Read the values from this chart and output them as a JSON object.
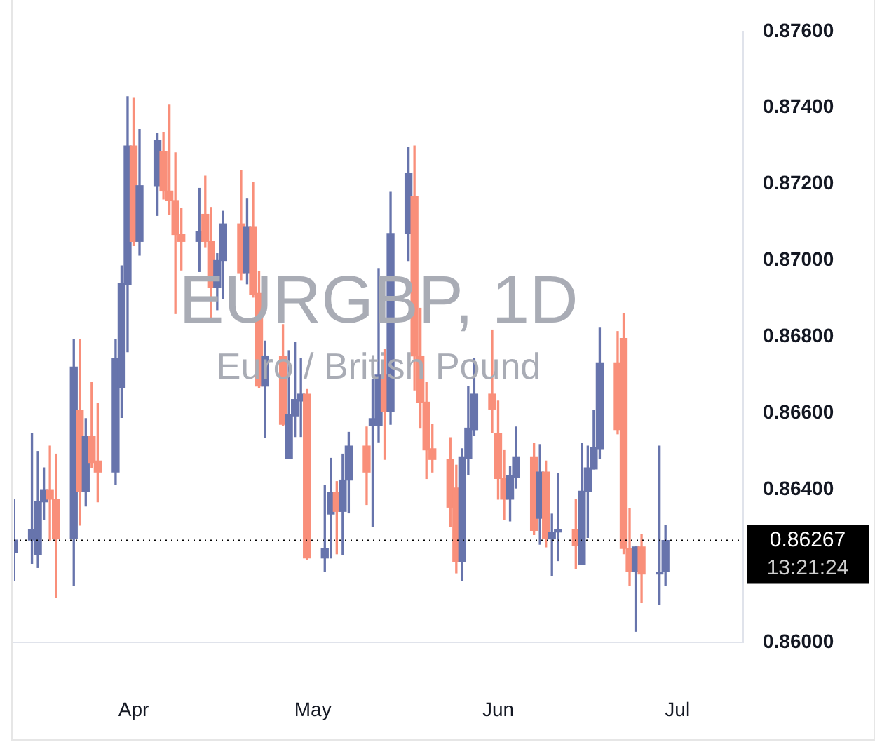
{
  "chart_data": {
    "type": "candlestick",
    "title": "EURGBP, 1D",
    "subtitle": "Euro / British Pound",
    "x": [
      "--03-12",
      "--03-15",
      "--03-16",
      "--03-17",
      "--03-18",
      "--03-19",
      "--03-22",
      "--03-23",
      "--03-24",
      "--03-25",
      "--03-26",
      "--03-29",
      "--03-30",
      "--03-31",
      "--04-01",
      "--04-02",
      "--04-05",
      "--04-06",
      "--04-07",
      "--04-08",
      "--04-09",
      "--04-12",
      "--04-13",
      "--04-14",
      "--04-15",
      "--04-16",
      "--04-19",
      "--04-20",
      "--04-21",
      "--04-22",
      "--04-23",
      "--04-26",
      "--04-27",
      "--04-28",
      "--04-29",
      "--04-30",
      "--05-03",
      "--05-04",
      "--05-05",
      "--05-06",
      "--05-07",
      "--05-10",
      "--05-11",
      "--05-12",
      "--05-13",
      "--05-14",
      "--05-17",
      "--05-18",
      "--05-19",
      "--05-20",
      "--05-21",
      "--05-24",
      "--05-25",
      "--05-26",
      "--05-27",
      "--05-28",
      "--05-31",
      "--06-01",
      "--06-02",
      "--06-03",
      "--06-04",
      "--06-07",
      "--06-08",
      "--06-09",
      "--06-10",
      "--06-11",
      "--06-14",
      "--06-15",
      "--06-16",
      "--06-17",
      "--06-18",
      "--06-21",
      "--06-22",
      "--06-23",
      "--06-24",
      "--06-25",
      "--06-28",
      "--06-29"
    ],
    "ohlc": [
      [
        0.86236,
        0.86375,
        0.86161,
        0.86268
      ],
      [
        0.86268,
        0.86546,
        0.86207,
        0.86296
      ],
      [
        0.86229,
        0.865,
        0.86196,
        0.86368
      ],
      [
        0.86368,
        0.86457,
        0.86321,
        0.864
      ],
      [
        0.864,
        0.86514,
        0.86268,
        0.86375
      ],
      [
        0.86375,
        0.86493,
        0.86118,
        0.86271
      ],
      [
        0.86271,
        0.86793,
        0.8615,
        0.86721
      ],
      [
        0.86607,
        0.86793,
        0.86307,
        0.86396
      ],
      [
        0.86396,
        0.86586,
        0.86357,
        0.86539
      ],
      [
        0.86539,
        0.86682,
        0.86457,
        0.86471
      ],
      [
        0.86475,
        0.86625,
        0.86368,
        0.86446
      ],
      [
        0.86446,
        0.86793,
        0.86414,
        0.86743
      ],
      [
        0.86668,
        0.86986,
        0.86589,
        0.86939
      ],
      [
        0.86936,
        0.87429,
        0.86761,
        0.873
      ],
      [
        0.873,
        0.87425,
        0.87039,
        0.8705
      ],
      [
        0.8705,
        0.87343,
        0.87014,
        0.87196
      ],
      [
        0.87196,
        0.87332,
        0.87118,
        0.87314
      ],
      [
        0.87286,
        0.87336,
        0.87161,
        0.87182
      ],
      [
        0.87182,
        0.87407,
        0.87121,
        0.87157
      ],
      [
        0.87157,
        0.87282,
        0.86861,
        0.87068
      ],
      [
        0.87068,
        0.87136,
        0.86975,
        0.8705
      ],
      [
        0.8705,
        0.87189,
        0.86971,
        0.87075
      ],
      [
        0.87121,
        0.87221,
        0.87036,
        0.8705
      ],
      [
        0.8705,
        0.87139,
        0.86846,
        0.86929
      ],
      [
        0.86929,
        0.87018,
        0.86871,
        0.87
      ],
      [
        0.87,
        0.87129,
        0.869,
        0.87096
      ],
      [
        0.87096,
        0.87236,
        0.8695,
        0.86968
      ],
      [
        0.86968,
        0.87161,
        0.86939,
        0.87089
      ],
      [
        0.87089,
        0.87204,
        0.86904,
        0.86911
      ],
      [
        0.86914,
        0.86971,
        0.86668,
        0.86671
      ],
      [
        0.86671,
        0.86789,
        0.86536,
        0.8675
      ],
      [
        0.8675,
        0.86832,
        0.86568,
        0.86571
      ],
      [
        0.86482,
        0.86764,
        0.86482,
        0.86596
      ],
      [
        0.86593,
        0.86786,
        0.86539,
        0.86636
      ],
      [
        0.86632,
        0.86743,
        0.86539,
        0.8665
      ],
      [
        0.8665,
        0.86664,
        0.86218,
        0.86221
      ],
      [
        0.86221,
        0.86411,
        0.86186,
        0.86246
      ],
      [
        0.86336,
        0.86482,
        0.86221,
        0.86393
      ],
      [
        0.86393,
        0.86421,
        0.86232,
        0.86343
      ],
      [
        0.86343,
        0.86493,
        0.86229,
        0.86425
      ],
      [
        0.86425,
        0.8655,
        0.86339,
        0.86514
      ],
      [
        0.86514,
        0.86564,
        0.86361,
        0.86446
      ],
      [
        0.86568,
        0.86689,
        0.86304,
        0.86586
      ],
      [
        0.86568,
        0.86979,
        0.86525,
        0.867
      ],
      [
        0.867,
        0.86768,
        0.86479,
        0.86604
      ],
      [
        0.86604,
        0.87179,
        0.86571,
        0.87071
      ],
      [
        0.87071,
        0.87296,
        0.87,
        0.87229
      ],
      [
        0.87168,
        0.873,
        0.86661,
        0.8675
      ],
      [
        0.8675,
        0.86875,
        0.86561,
        0.86629
      ],
      [
        0.86629,
        0.86682,
        0.86429,
        0.86504
      ],
      [
        0.86507,
        0.86571,
        0.86446,
        0.86479
      ],
      [
        0.86479,
        0.86536,
        0.86304,
        0.86354
      ],
      [
        0.86404,
        0.86464,
        0.86182,
        0.86211
      ],
      [
        0.86211,
        0.86507,
        0.86161,
        0.86486
      ],
      [
        0.86482,
        0.86671,
        0.86439,
        0.86561
      ],
      [
        0.86557,
        0.86743,
        0.86543,
        0.8665
      ],
      [
        0.8665,
        0.86818,
        0.8655,
        0.86611
      ],
      [
        0.86546,
        0.86632,
        0.86375,
        0.86429
      ],
      [
        0.86429,
        0.86504,
        0.86321,
        0.86375
      ],
      [
        0.86375,
        0.86461,
        0.86318,
        0.86436
      ],
      [
        0.86432,
        0.86564,
        0.86404,
        0.86486
      ],
      [
        0.86486,
        0.86521,
        0.86282,
        0.86293
      ],
      [
        0.86325,
        0.86518,
        0.86257,
        0.86446
      ],
      [
        0.86446,
        0.86475,
        0.8625,
        0.86271
      ],
      [
        0.86271,
        0.86336,
        0.86175,
        0.86289
      ],
      [
        0.86289,
        0.86443,
        0.86214,
        0.86296
      ],
      [
        0.86296,
        0.86375,
        0.86193,
        0.86254
      ],
      [
        0.86204,
        0.86521,
        0.86204,
        0.86396
      ],
      [
        0.86396,
        0.86514,
        0.86275,
        0.86457
      ],
      [
        0.86454,
        0.86607,
        0.86454,
        0.86511
      ],
      [
        0.86507,
        0.86825,
        0.86482,
        0.86732
      ],
      [
        0.86732,
        0.86814,
        0.86546,
        0.86557
      ],
      [
        0.86796,
        0.86861,
        0.86232,
        0.86246
      ],
      [
        0.86246,
        0.8635,
        0.8615,
        0.86186
      ],
      [
        0.86186,
        0.8625,
        0.86029,
        0.8625
      ],
      [
        0.8625,
        0.86282,
        0.86104,
        0.86179
      ],
      [
        0.86179,
        0.86514,
        0.861,
        0.86182
      ],
      [
        0.86186,
        0.86307,
        0.8615,
        0.86267
      ]
    ],
    "colors": [
      "#6774ac",
      "#6774ac",
      "#6774ac",
      "#6774ac",
      "#f98f7a",
      "#f98f7a",
      "#6774ac",
      "#f98f7a",
      "#6774ac",
      "#f98f7a",
      "#f98f7a",
      "#6774ac",
      "#6774ac",
      "#6774ac",
      "#f98f7a",
      "#6774ac",
      "#6774ac",
      "#f98f7a",
      "#f98f7a",
      "#f98f7a",
      "#f98f7a",
      "#6774ac",
      "#f98f7a",
      "#f98f7a",
      "#6774ac",
      "#6774ac",
      "#f98f7a",
      "#6774ac",
      "#f98f7a",
      "#f98f7a",
      "#6774ac",
      "#f98f7a",
      "#6774ac",
      "#6774ac",
      "#6774ac",
      "#f98f7a",
      "#6774ac",
      "#6774ac",
      "#f98f7a",
      "#6774ac",
      "#6774ac",
      "#f98f7a",
      "#6774ac",
      "#6774ac",
      "#f98f7a",
      "#6774ac",
      "#6774ac",
      "#f98f7a",
      "#f98f7a",
      "#f98f7a",
      "#f98f7a",
      "#f98f7a",
      "#f98f7a",
      "#6774ac",
      "#6774ac",
      "#6774ac",
      "#f98f7a",
      "#f98f7a",
      "#f98f7a",
      "#6774ac",
      "#6774ac",
      "#f98f7a",
      "#6774ac",
      "#f98f7a",
      "#6774ac",
      "#6774ac",
      "#f98f7a",
      "#6774ac",
      "#6774ac",
      "#6774ac",
      "#6774ac",
      "#f98f7a",
      "#f98f7a",
      "#f98f7a",
      "#6774ac",
      "#f98f7a",
      "#6774ac",
      "#6774ac"
    ],
    "xlim": [
      "--03-12",
      "--07-12"
    ],
    "xticks": [
      {
        "value": "--04-01",
        "label": "Apr"
      },
      {
        "value": "--05-01",
        "label": "May"
      },
      {
        "value": "--06-01",
        "label": "Jun"
      },
      {
        "value": "--07-01",
        "label": "Jul"
      }
    ],
    "ylim": [
      0.86,
      0.876
    ],
    "yticks": [
      {
        "value": 0.86,
        "label": "0.86000"
      },
      {
        "value": 0.864,
        "label": "0.86400"
      },
      {
        "value": 0.866,
        "label": "0.86600"
      },
      {
        "value": 0.868,
        "label": "0.86800"
      },
      {
        "value": 0.87,
        "label": "0.87000"
      },
      {
        "value": 0.872,
        "label": "0.87200"
      },
      {
        "value": 0.874,
        "label": "0.87400"
      },
      {
        "value": 0.876,
        "label": "0.87600"
      }
    ],
    "ref_lines": [
      {
        "axis": "y",
        "value": 0.86267,
        "label": "0.86267",
        "color": "#000000",
        "line_style": "dotted"
      }
    ],
    "annotations": [
      "13:21:24"
    ],
    "grid": false,
    "legend": false
  }
}
